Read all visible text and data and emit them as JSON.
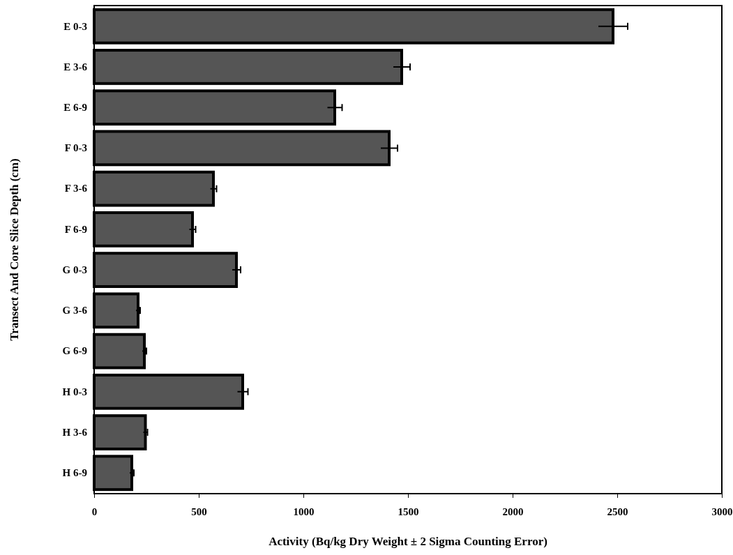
{
  "chart_data": {
    "type": "bar",
    "orientation": "horizontal",
    "xlabel": "Activity (Bq/kg Dry Weight ± 2 Sigma Counting Error)",
    "ylabel": "Transect And Core Slice Depth (cm)",
    "categories": [
      "E 0-3",
      "E 3-6",
      "E 6-9",
      "F 0-3",
      "F 3-6",
      "F 6-9",
      "G 0-3",
      "G 3-6",
      "G 6-9",
      "H 0-3",
      "H 3-6",
      "H 6-9"
    ],
    "values": [
      2480,
      1470,
      1150,
      1410,
      570,
      470,
      680,
      210,
      240,
      710,
      245,
      180
    ],
    "errors": [
      70,
      40,
      35,
      40,
      15,
      15,
      20,
      10,
      10,
      25,
      10,
      10
    ],
    "color": "#555555",
    "xlim": [
      0,
      3000
    ],
    "xticks": [
      0,
      500,
      1000,
      1500,
      2000,
      2500,
      3000
    ],
    "grid": false
  }
}
